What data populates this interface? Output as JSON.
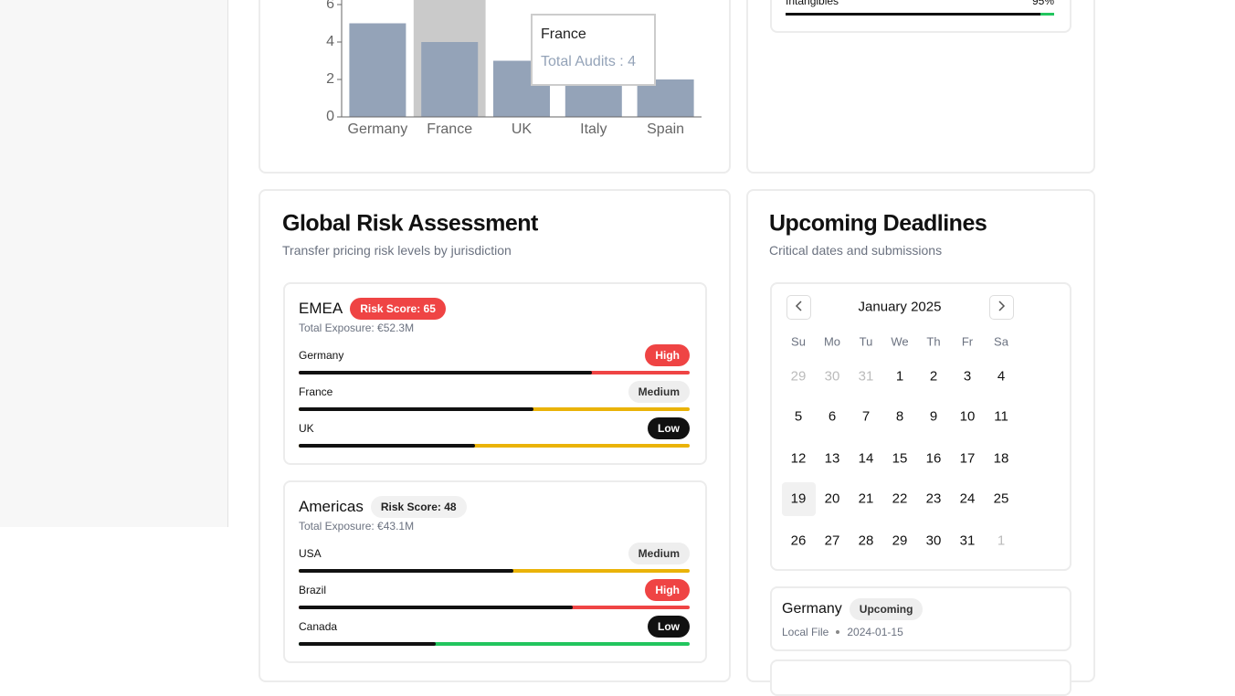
{
  "audit_chart": {
    "type": "bar",
    "categories": [
      "Germany",
      "France",
      "UK",
      "Italy",
      "Spain"
    ],
    "values": [
      5,
      4,
      3,
      3,
      2
    ],
    "color": "#94a3b8",
    "ylim": [
      0,
      6
    ],
    "yticks": [
      0,
      2,
      4,
      6
    ],
    "highlight_index": 1,
    "tooltip": {
      "title": "France",
      "label": "Total Audits : 4"
    }
  },
  "intangibles": {
    "label": "Intangibles",
    "value_label": "95%",
    "value": 95,
    "color": "#22c55e"
  },
  "risk": {
    "title": "Global Risk Assessment",
    "subtitle": "Transfer pricing risk levels by jurisdiction",
    "regions": [
      {
        "name": "EMEA",
        "badge": "Risk Score: 65",
        "badge_color": "#ef4444",
        "exposure": "Total Exposure: €52.3M",
        "countries": [
          {
            "name": "Germany",
            "level": "High",
            "score": 75,
            "color": "#ef4444"
          },
          {
            "name": "France",
            "level": "Medium",
            "score": 60,
            "color": "#eab308"
          },
          {
            "name": "UK",
            "level": "Low",
            "score": 45,
            "color": "#eab308"
          }
        ]
      },
      {
        "name": "Americas",
        "badge": "Risk Score: 48",
        "badge_color": "#f1f1f1",
        "exposure": "Total Exposure: €43.1M",
        "countries": [
          {
            "name": "USA",
            "level": "Medium",
            "score": 55,
            "color": "#eab308"
          },
          {
            "name": "Brazil",
            "level": "High",
            "score": 70,
            "color": "#ef4444"
          },
          {
            "name": "Canada",
            "level": "Low",
            "score": 35,
            "color": "#22c55e"
          }
        ]
      }
    ]
  },
  "deadlines": {
    "title": "Upcoming Deadlines",
    "subtitle": "Critical dates and submissions",
    "calendar": {
      "month": "January 2025",
      "weekdays": [
        "Su",
        "Mo",
        "Tu",
        "We",
        "Th",
        "Fr",
        "Sa"
      ],
      "prev_month_days": [
        29,
        30,
        31
      ],
      "days": [
        1,
        2,
        3,
        4,
        5,
        6,
        7,
        8,
        9,
        10,
        11,
        12,
        13,
        14,
        15,
        16,
        17,
        18,
        19,
        20,
        21,
        22,
        23,
        24,
        25,
        26,
        27,
        28,
        29,
        30,
        31
      ],
      "next_month_days": [
        1
      ],
      "selected": 19
    },
    "items": [
      {
        "country": "Germany",
        "status": "Upcoming",
        "type": "Local File",
        "date": "2024-01-15"
      }
    ]
  }
}
